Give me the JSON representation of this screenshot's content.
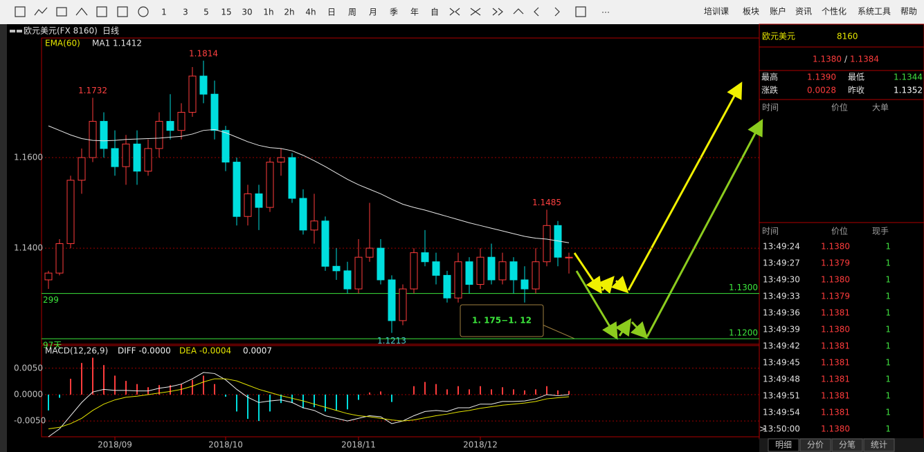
{
  "toolbar": {
    "periods": [
      "1",
      "3",
      "5",
      "15",
      "30",
      "1h",
      "2h",
      "4h",
      "日",
      "周",
      "月",
      "季",
      "年",
      "自"
    ],
    "menu": [
      "培训课",
      "板块",
      "账户",
      "资讯",
      "个性化",
      "系统工具",
      "帮助"
    ]
  },
  "chart_data": [
    {
      "type": "candlestick",
      "title": "欧元美元(FX 8160)",
      "period": "日线",
      "indicator": "EMA(60)",
      "ma_label": "MA1 1.1412",
      "categories": [
        null,
        null,
        null,
        null,
        null,
        null,
        "2018/09",
        null,
        null,
        null,
        null,
        null,
        null,
        null,
        null,
        null,
        "2018/10",
        null,
        null,
        null,
        null,
        null,
        null,
        null,
        null,
        null,
        null,
        null,
        "2018/11",
        null,
        null,
        null,
        null,
        null,
        null,
        null,
        null,
        null,
        null,
        "2018/12",
        null,
        null,
        null,
        null,
        null,
        null,
        null,
        null
      ],
      "open": [
        1.133,
        1.1345,
        1.141,
        1.155,
        1.16,
        1.168,
        1.162,
        1.158,
        1.163,
        1.157,
        1.162,
        1.168,
        1.166,
        1.17,
        1.178,
        1.174,
        1.166,
        1.159,
        1.147,
        1.152,
        1.149,
        1.159,
        1.16,
        1.151,
        1.144,
        1.146,
        1.136,
        1.135,
        1.131,
        1.138,
        1.14,
        1.133,
        1.124,
        1.131,
        1.139,
        1.137,
        1.134,
        1.129,
        1.137,
        1.132,
        1.138,
        1.133,
        1.137,
        1.133,
        1.131,
        1.137,
        1.145,
        1.138
      ],
      "high": [
        1.135,
        1.142,
        1.156,
        1.162,
        1.1732,
        1.17,
        1.166,
        1.165,
        1.166,
        1.164,
        1.17,
        1.174,
        1.172,
        1.18,
        1.1814,
        1.177,
        1.167,
        1.16,
        1.154,
        1.154,
        1.16,
        1.162,
        1.161,
        1.153,
        1.152,
        1.147,
        1.14,
        1.137,
        1.142,
        1.15,
        1.142,
        1.134,
        1.132,
        1.14,
        1.144,
        1.139,
        1.135,
        1.139,
        1.138,
        1.14,
        1.141,
        1.139,
        1.138,
        1.136,
        1.14,
        1.1485,
        1.146,
        1.139
      ],
      "low": [
        1.131,
        1.134,
        1.14,
        1.152,
        1.159,
        1.16,
        1.156,
        1.154,
        1.154,
        1.156,
        1.16,
        1.164,
        1.164,
        1.169,
        1.172,
        1.164,
        1.157,
        1.145,
        1.145,
        1.144,
        1.148,
        1.156,
        1.15,
        1.143,
        1.141,
        1.135,
        1.133,
        1.13,
        1.13,
        1.137,
        1.132,
        1.1213,
        1.123,
        1.13,
        1.136,
        1.132,
        1.128,
        1.128,
        1.13,
        1.131,
        1.132,
        1.132,
        1.13,
        1.128,
        1.13,
        1.136,
        1.136,
        1.1344
      ],
      "close": [
        1.1345,
        1.141,
        1.155,
        1.16,
        1.168,
        1.162,
        1.158,
        1.163,
        1.157,
        1.162,
        1.168,
        1.166,
        1.17,
        1.178,
        1.174,
        1.166,
        1.159,
        1.147,
        1.152,
        1.149,
        1.159,
        1.16,
        1.151,
        1.144,
        1.146,
        1.136,
        1.135,
        1.131,
        1.138,
        1.14,
        1.133,
        1.124,
        1.131,
        1.139,
        1.137,
        1.134,
        1.129,
        1.137,
        1.132,
        1.138,
        1.133,
        1.137,
        1.133,
        1.131,
        1.137,
        1.145,
        1.138,
        1.138
      ],
      "up_color": "#ff3c3c",
      "down_color": "#00dede",
      "ema": {
        "color": "#e8e8e8",
        "values": [
          1.167,
          1.166,
          1.165,
          1.1642,
          1.1638,
          1.1637,
          1.1638,
          1.164,
          1.1641,
          1.1642,
          1.1643,
          1.1645,
          1.1647,
          1.1652,
          1.166,
          1.1662,
          1.1655,
          1.1645,
          1.1635,
          1.1627,
          1.1622,
          1.162,
          1.1615,
          1.1605,
          1.1593,
          1.158,
          1.1566,
          1.1552,
          1.154,
          1.153,
          1.152,
          1.1508,
          1.1497,
          1.149,
          1.1484,
          1.1477,
          1.147,
          1.1463,
          1.1456,
          1.145,
          1.1444,
          1.1438,
          1.1432,
          1.1426,
          1.1422,
          1.142,
          1.1416,
          1.1412
        ]
      },
      "ylim": [
        1.1188,
        1.1864
      ],
      "yticks": [
        {
          "value": 1.16,
          "label": "1.1600"
        },
        {
          "value": 1.14,
          "label": "1.1400"
        }
      ],
      "extremes": [
        "1.1732",
        "1.1814",
        "1.1485",
        "1.1213"
      ],
      "levels": [
        {
          "value": 1.13,
          "label": "1.1300",
          "note": "299"
        },
        {
          "value": 1.12,
          "label": "1.1200",
          "note": "97天"
        }
      ],
      "level_color": "#3ce63c",
      "callout": "1. 175−1. 12"
    },
    {
      "type": "macd",
      "title": "MACD(12,26,9)",
      "diff_label": "DIFF -0.0000",
      "dea_label": "DEA -0.0004",
      "macd_label": "0.0007",
      "ylim": [
        -0.008,
        0.0093
      ],
      "yticks": [
        {
          "value": 0.005,
          "label": "0.0050"
        },
        {
          "value": 0,
          "label": "0.0000"
        },
        {
          "value": -0.005,
          "label": "-0.0050"
        }
      ],
      "series": [
        {
          "name": "DIFF",
          "color": "#f0f0f0",
          "values": [
            -0.008,
            -0.0065,
            -0.004,
            -0.0015,
            0.0005,
            0.001,
            0.0008,
            0.0008,
            0.0007,
            0.0007,
            0.0012,
            0.0015,
            0.002,
            0.003,
            0.0042,
            0.004,
            0.0028,
            0.001,
            -0.0005,
            -0.0015,
            -0.0012,
            -0.001,
            -0.0015,
            -0.0025,
            -0.003,
            -0.004,
            -0.0045,
            -0.005,
            -0.0045,
            -0.004,
            -0.0042,
            -0.0055,
            -0.005,
            -0.004,
            -0.0032,
            -0.003,
            -0.0032,
            -0.0025,
            -0.0025,
            -0.0018,
            -0.0018,
            -0.0013,
            -0.0013,
            -0.0012,
            -0.0008,
            0.0,
            -0.0002,
            0.0
          ]
        },
        {
          "name": "DEA",
          "color": "#e6e600",
          "values": [
            -0.0065,
            -0.0062,
            -0.0055,
            -0.0045,
            -0.003,
            -0.0018,
            -0.001,
            -0.0005,
            -0.0003,
            0.0,
            0.0003,
            0.0006,
            0.001,
            0.0016,
            0.0024,
            0.003,
            0.003,
            0.0026,
            0.0018,
            0.001,
            0.0004,
            -0.0002,
            -0.0007,
            -0.0012,
            -0.0018,
            -0.0024,
            -0.003,
            -0.0036,
            -0.004,
            -0.0042,
            -0.0045,
            -0.0048,
            -0.005,
            -0.0048,
            -0.0044,
            -0.004,
            -0.0037,
            -0.0033,
            -0.003,
            -0.0026,
            -0.0023,
            -0.002,
            -0.0018,
            -0.0016,
            -0.0013,
            -0.0008,
            -0.0006,
            -0.0004
          ]
        }
      ],
      "histogram": [
        -0.003,
        -0.0006,
        0.003,
        0.006,
        0.007,
        0.0056,
        0.0036,
        0.0026,
        0.002,
        0.0014,
        0.0018,
        0.0018,
        0.002,
        0.0028,
        0.0036,
        0.002,
        -0.0004,
        -0.0032,
        -0.0046,
        -0.005,
        -0.0032,
        -0.0016,
        -0.0016,
        -0.0026,
        -0.0024,
        -0.0032,
        -0.003,
        -0.0028,
        -0.001,
        0.0004,
        0.0006,
        -0.0014,
        0.0,
        0.0016,
        0.0024,
        0.002,
        0.001,
        0.0016,
        0.001,
        0.0016,
        0.001,
        0.0014,
        0.001,
        0.0008,
        0.001,
        0.0016,
        0.0008,
        0.0007
      ]
    }
  ],
  "quote": {
    "name": "欧元美元",
    "code": "8160",
    "bid": "1.1380",
    "sep": "/",
    "ask": "1.1384",
    "stats": [
      [
        "最高",
        "1.1390",
        "最低",
        "1.1344"
      ],
      [
        "涨跌",
        "0.0028",
        "昨收",
        "1.1352"
      ]
    ]
  },
  "big_orders": {
    "headers": [
      "时间",
      "价位",
      "大单"
    ]
  },
  "trades": {
    "headers": [
      "时间",
      "价位",
      "现手"
    ],
    "cursor": ">",
    "rows": [
      [
        "13:49:24",
        "1.1380",
        "1"
      ],
      [
        "13:49:27",
        "1.1379",
        "1"
      ],
      [
        "13:49:30",
        "1.1380",
        "1"
      ],
      [
        "13:49:33",
        "1.1379",
        "1"
      ],
      [
        "13:49:36",
        "1.1381",
        "1"
      ],
      [
        "13:49:39",
        "1.1380",
        "1"
      ],
      [
        "13:49:42",
        "1.1381",
        "1"
      ],
      [
        "13:49:45",
        "1.1381",
        "1"
      ],
      [
        "13:49:48",
        "1.1381",
        "1"
      ],
      [
        "13:49:51",
        "1.1381",
        "1"
      ],
      [
        "13:49:54",
        "1.1381",
        "1"
      ],
      [
        "13:50:00",
        "1.1380",
        "1"
      ]
    ]
  },
  "tabs": [
    "明细",
    "分价",
    "分笔",
    "统计"
  ]
}
